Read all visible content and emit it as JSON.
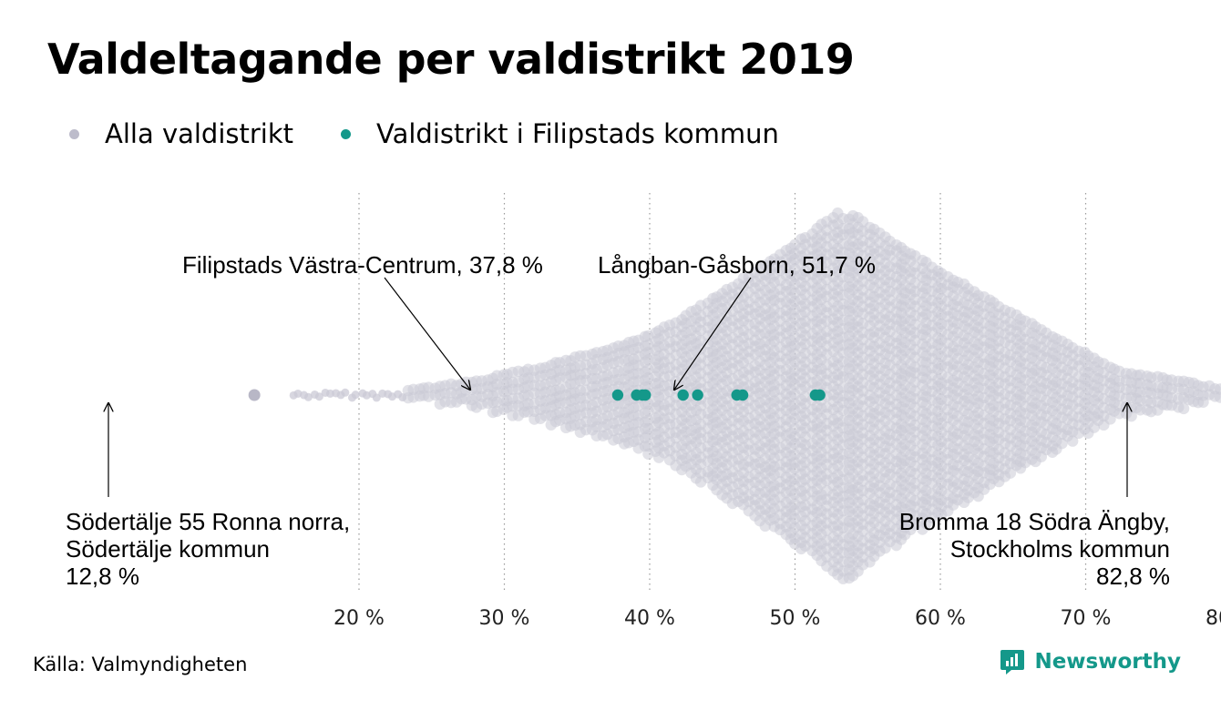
{
  "title": "Valdeltagande per valdistrikt 2019",
  "colors": {
    "all": "#cbcad6",
    "all_highlight": "#b8b7c6",
    "filipstad": "#14988a",
    "brand": "#14988a"
  },
  "legend": [
    {
      "label": "Alla valdistrikt",
      "color": "#bdbccb"
    },
    {
      "label": "Valdistrikt i Filipstads kommun",
      "color": "#14988a"
    }
  ],
  "source": "Källa: Valmyndigheten",
  "brand": {
    "name": "Newsworthy",
    "icon": "newsworthy-logo-icon"
  },
  "chart_data": {
    "type": "scatter",
    "subtype": "beeswarm",
    "x_unit": "%",
    "xlim": [
      12,
      84
    ],
    "x_ticks": [
      20,
      30,
      40,
      50,
      60,
      70,
      80
    ],
    "tick_labels": [
      "20 %",
      "30 %",
      "40 %",
      "50 %",
      "60 %",
      "70 %",
      "80 %"
    ],
    "grid": "vertical dotted",
    "series": [
      {
        "name": "Alla valdistrikt",
        "distribution": {
          "min": 12.8,
          "max": 82.8,
          "peak": 53.5
        }
      },
      {
        "name": "Valdistrikt i Filipstads kommun",
        "values": [
          37.8,
          39.1,
          39.5,
          39.7,
          42.3,
          43.3,
          46.0,
          46.4,
          51.4,
          51.7
        ]
      }
    ],
    "annotations": [
      {
        "label": "Filipstads Västra-Centrum, 37,8 %",
        "x": 37.8
      },
      {
        "label": "Långban-Gåsborn, 51,7 %",
        "x": 51.7
      },
      {
        "lines": [
          "Södertälje 55 Ronna norra,",
          "Södertälje kommun",
          "12,8 %"
        ],
        "x": 12.8
      },
      {
        "lines": [
          "Bromma 18 Södra Ängby,",
          "Stockholms kommun",
          "82,8 %"
        ],
        "x": 82.8
      }
    ]
  }
}
